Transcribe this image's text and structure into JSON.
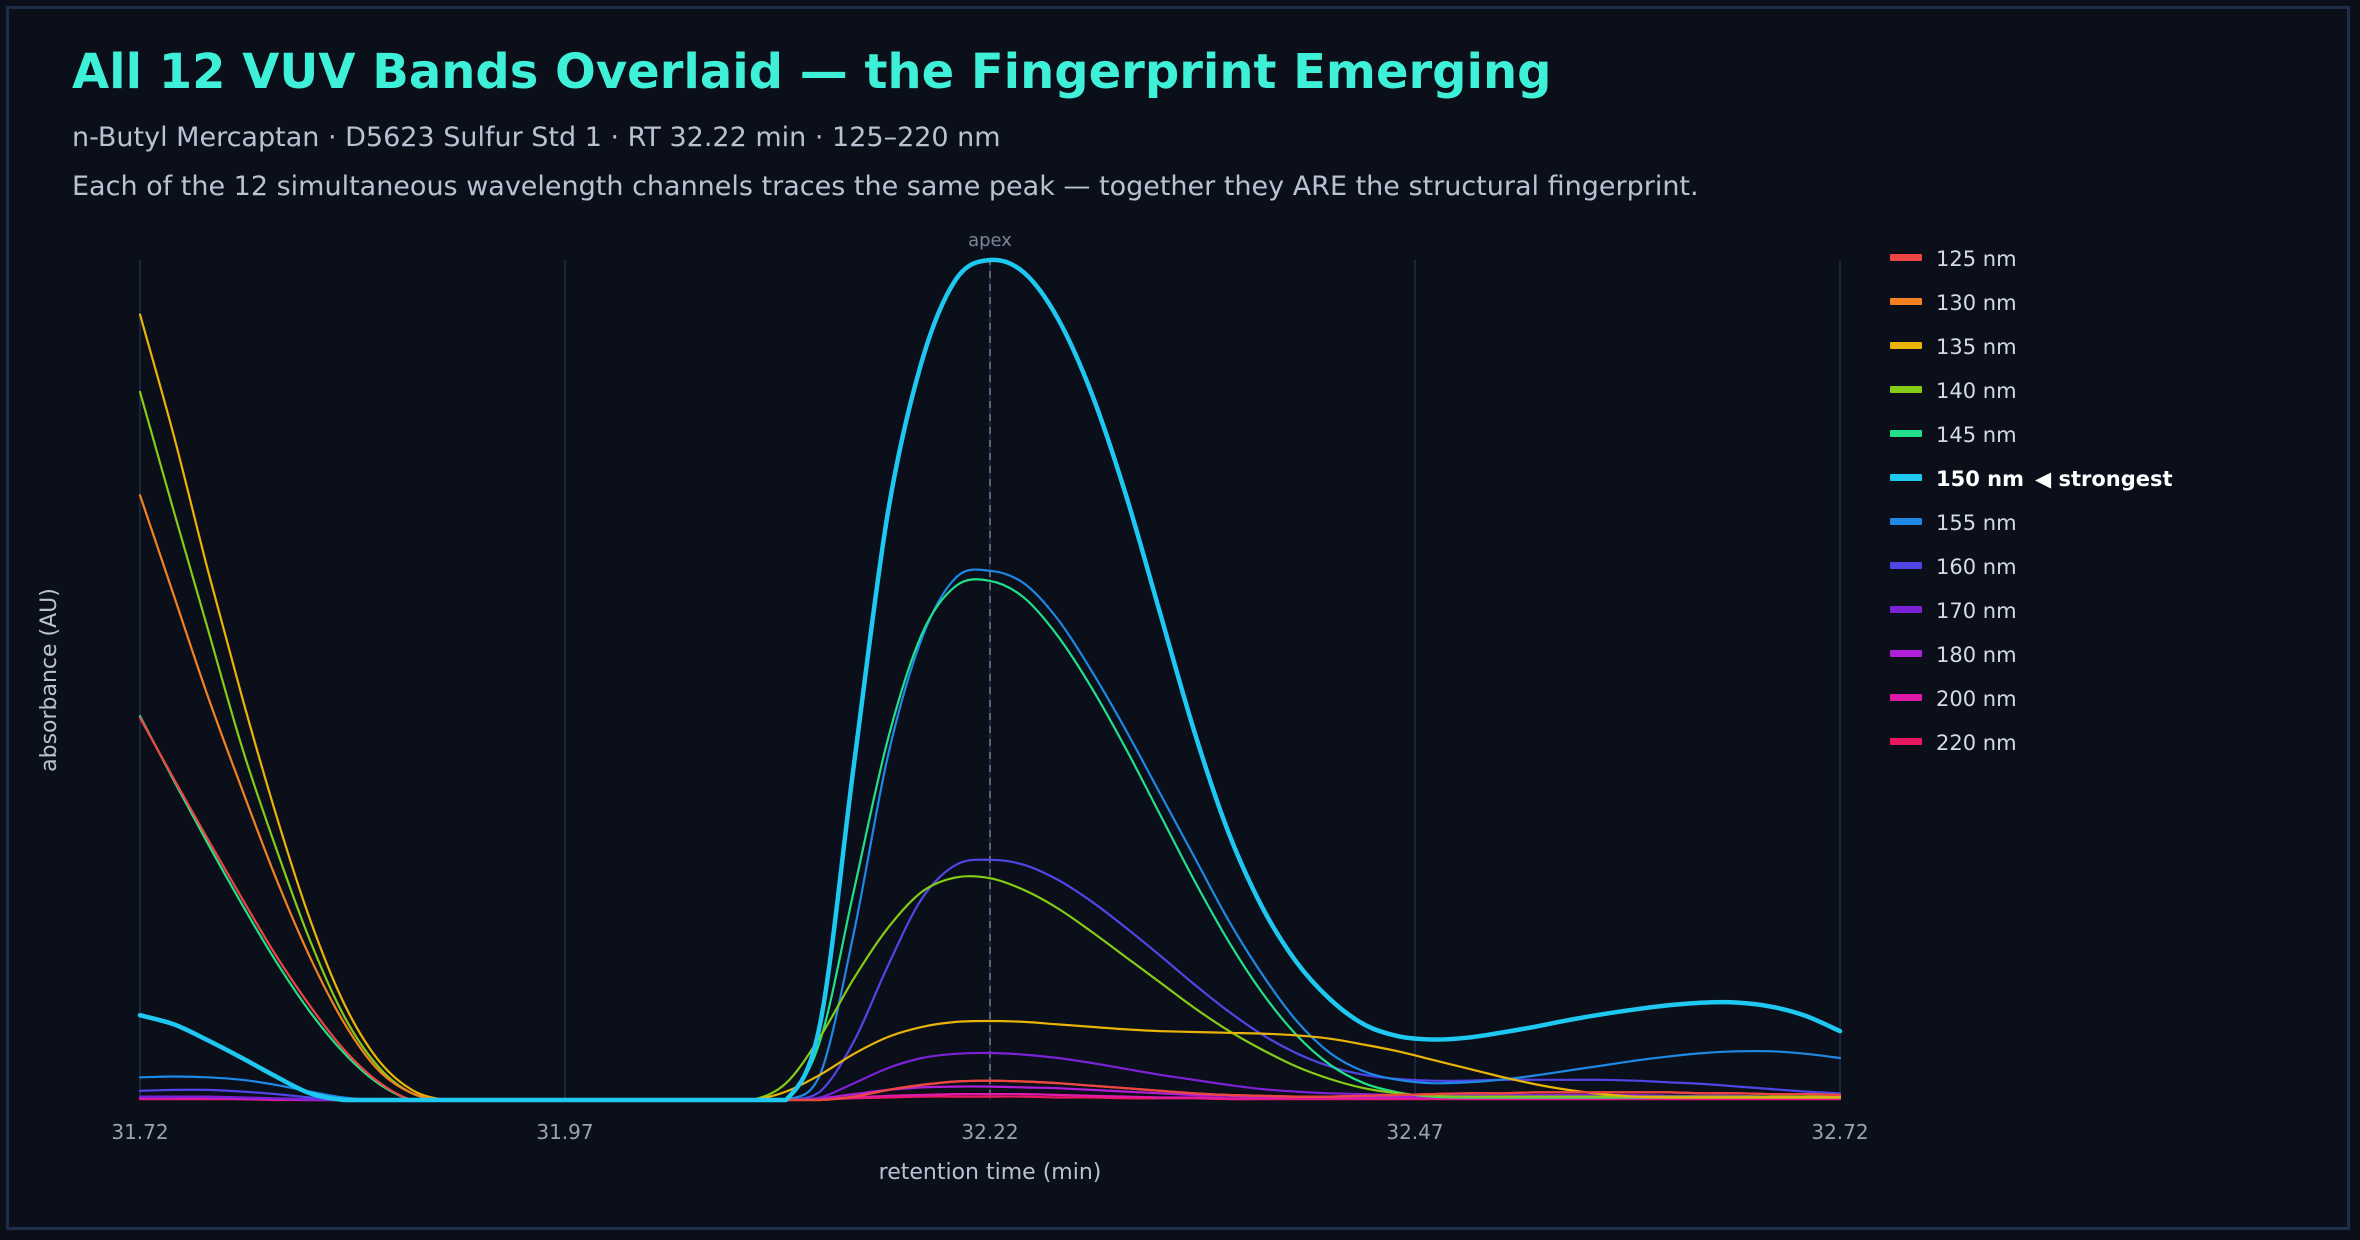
{
  "header": {
    "title": "All 12 VUV Bands Overlaid — the Fingerprint Emerging",
    "subtitle": "n-Butyl Mercaptan · D5623 Sulfur Std 1 · RT 32.22 min · 125–220 nm",
    "description": "Each of the 12 simultaneous wavelength channels traces the same peak — together they ARE the structural fingerprint."
  },
  "chart_data": {
    "type": "line",
    "xlabel": "retention time (min)",
    "ylabel": "absorbance (AU)",
    "xlim": [
      31.72,
      32.72
    ],
    "ylim": [
      0,
      1.0
    ],
    "x_ticks": [
      "31.72",
      "31.97",
      "32.22",
      "32.47",
      "32.72"
    ],
    "grid": "vertical",
    "legend_position": "right",
    "annotation": {
      "label": "apex",
      "x": 32.22
    },
    "highlight": {
      "series": "150 nm",
      "label": "◀ strongest"
    },
    "x": [
      31.72,
      31.74,
      31.76,
      31.78,
      31.8,
      31.82,
      31.84,
      31.86,
      31.88,
      31.9,
      31.92,
      31.94,
      31.96,
      31.98,
      32.0,
      32.02,
      32.04,
      32.06,
      32.08,
      32.1,
      32.12,
      32.14,
      32.16,
      32.18,
      32.2,
      32.22,
      32.24,
      32.26,
      32.28,
      32.3,
      32.32,
      32.34,
      32.36,
      32.38,
      32.4,
      32.42,
      32.44,
      32.46,
      32.48,
      32.5,
      32.52,
      32.54,
      32.56,
      32.58,
      32.6,
      32.62,
      32.64,
      32.66,
      32.68,
      32.7,
      32.72
    ],
    "series": [
      {
        "name": "125 nm",
        "color": "#ef4444",
        "values": [
          0.455,
          0.382,
          0.31,
          0.24,
          0.172,
          0.112,
          0.06,
          0.022,
          0.0,
          0.0,
          0.0,
          0.0,
          0.0,
          0.0,
          0.0,
          0.0,
          0.0,
          0.0,
          0.0,
          0.0,
          0.0,
          0.004,
          0.012,
          0.018,
          0.022,
          0.023,
          0.022,
          0.02,
          0.017,
          0.014,
          0.011,
          0.008,
          0.006,
          0.005,
          0.004,
          0.004,
          0.005,
          0.006,
          0.007,
          0.008,
          0.008,
          0.009,
          0.009,
          0.009,
          0.009,
          0.009,
          0.008,
          0.008,
          0.007,
          0.007,
          0.006
        ]
      },
      {
        "name": "130 nm",
        "color": "#f58220",
        "values": [
          0.72,
          0.6,
          0.48,
          0.37,
          0.264,
          0.17,
          0.092,
          0.036,
          0.008,
          0.0,
          0.0,
          0.0,
          0.0,
          0.0,
          0.0,
          0.0,
          0.0,
          0.0,
          0.0,
          0.0,
          0.0,
          0.004,
          0.012,
          0.018,
          0.022,
          0.023,
          0.022,
          0.02,
          0.017,
          0.014,
          0.011,
          0.008,
          0.006,
          0.005,
          0.004,
          0.004,
          0.005,
          0.006,
          0.007,
          0.008,
          0.008,
          0.009,
          0.009,
          0.009,
          0.009,
          0.009,
          0.008,
          0.008,
          0.007,
          0.007,
          0.006
        ]
      },
      {
        "name": "135 nm",
        "color": "#eab308",
        "values": [
          0.935,
          0.79,
          0.63,
          0.48,
          0.34,
          0.215,
          0.115,
          0.048,
          0.012,
          0.0,
          0.0,
          0.0,
          0.0,
          0.0,
          0.0,
          0.0,
          0.0,
          0.0,
          0.0,
          0.01,
          0.03,
          0.055,
          0.075,
          0.087,
          0.093,
          0.094,
          0.093,
          0.09,
          0.087,
          0.084,
          0.082,
          0.081,
          0.08,
          0.079,
          0.077,
          0.073,
          0.066,
          0.058,
          0.048,
          0.038,
          0.028,
          0.019,
          0.012,
          0.007,
          0.004,
          0.003,
          0.003,
          0.003,
          0.003,
          0.003,
          0.003
        ]
      },
      {
        "name": "140 nm",
        "color": "#84cc16",
        "values": [
          0.843,
          0.7,
          0.56,
          0.42,
          0.3,
          0.19,
          0.1,
          0.04,
          0.008,
          0.0,
          0.0,
          0.0,
          0.0,
          0.0,
          0.0,
          0.0,
          0.0,
          0.0,
          0.0,
          0.02,
          0.075,
          0.145,
          0.205,
          0.248,
          0.265,
          0.264,
          0.25,
          0.228,
          0.2,
          0.17,
          0.14,
          0.11,
          0.083,
          0.06,
          0.04,
          0.025,
          0.014,
          0.008,
          0.005,
          0.004,
          0.004,
          0.004,
          0.004,
          0.004,
          0.004,
          0.004,
          0.004,
          0.004,
          0.004,
          0.004,
          0.004
        ]
      },
      {
        "name": "145 nm",
        "color": "#22e08a",
        "values": [
          0.457,
          0.38,
          0.305,
          0.233,
          0.165,
          0.105,
          0.056,
          0.02,
          0.0,
          0.0,
          0.0,
          0.0,
          0.0,
          0.0,
          0.0,
          0.0,
          0.0,
          0.0,
          0.0,
          0.0,
          0.07,
          0.25,
          0.43,
          0.555,
          0.612,
          0.618,
          0.598,
          0.552,
          0.49,
          0.418,
          0.34,
          0.262,
          0.19,
          0.128,
          0.078,
          0.042,
          0.02,
          0.009,
          0.004,
          0.003,
          0.003,
          0.003,
          0.003,
          0.003,
          0.003,
          0.003,
          0.003,
          0.003,
          0.003,
          0.003,
          0.003
        ]
      },
      {
        "name": "150 nm",
        "color": "#1ec8f0",
        "emphasized": true,
        "values": [
          0.101,
          0.09,
          0.071,
          0.05,
          0.028,
          0.008,
          0.0,
          0.0,
          0.0,
          0.0,
          0.0,
          0.0,
          0.0,
          0.0,
          0.0,
          0.0,
          0.0,
          0.0,
          0.0,
          0.0,
          0.09,
          0.4,
          0.7,
          0.88,
          0.977,
          1.0,
          0.985,
          0.93,
          0.84,
          0.72,
          0.58,
          0.44,
          0.32,
          0.23,
          0.165,
          0.12,
          0.09,
          0.076,
          0.072,
          0.074,
          0.08,
          0.087,
          0.095,
          0.102,
          0.108,
          0.113,
          0.116,
          0.116,
          0.111,
          0.1,
          0.082
        ]
      },
      {
        "name": "155 nm",
        "color": "#1e88e5",
        "values": [
          0.027,
          0.028,
          0.027,
          0.024,
          0.018,
          0.01,
          0.003,
          0.0,
          0.0,
          0.0,
          0.0,
          0.0,
          0.0,
          0.0,
          0.0,
          0.0,
          0.0,
          0.0,
          0.0,
          0.0,
          0.03,
          0.2,
          0.41,
          0.55,
          0.622,
          0.63,
          0.615,
          0.572,
          0.51,
          0.44,
          0.365,
          0.29,
          0.215,
          0.15,
          0.095,
          0.056,
          0.034,
          0.024,
          0.02,
          0.021,
          0.024,
          0.029,
          0.035,
          0.041,
          0.047,
          0.052,
          0.056,
          0.058,
          0.058,
          0.055,
          0.05
        ]
      },
      {
        "name": "160 nm",
        "color": "#4f46e5",
        "values": [
          0.011,
          0.012,
          0.012,
          0.01,
          0.007,
          0.003,
          0.0,
          0.0,
          0.0,
          0.0,
          0.0,
          0.0,
          0.0,
          0.0,
          0.0,
          0.0,
          0.0,
          0.0,
          0.0,
          0.0,
          0.01,
          0.07,
          0.16,
          0.24,
          0.28,
          0.286,
          0.28,
          0.262,
          0.236,
          0.205,
          0.172,
          0.138,
          0.106,
          0.078,
          0.056,
          0.04,
          0.03,
          0.025,
          0.023,
          0.023,
          0.024,
          0.024,
          0.024,
          0.024,
          0.023,
          0.021,
          0.019,
          0.016,
          0.013,
          0.01,
          0.008
        ]
      },
      {
        "name": "170 nm",
        "color": "#7c22d6",
        "values": [
          0.004,
          0.004,
          0.004,
          0.003,
          0.002,
          0.001,
          0.0,
          0.0,
          0.0,
          0.0,
          0.0,
          0.0,
          0.0,
          0.0,
          0.0,
          0.0,
          0.0,
          0.0,
          0.0,
          0.0,
          0.003,
          0.02,
          0.038,
          0.05,
          0.055,
          0.056,
          0.054,
          0.05,
          0.044,
          0.037,
          0.03,
          0.024,
          0.018,
          0.013,
          0.01,
          0.008,
          0.007,
          0.006,
          0.006,
          0.006,
          0.006,
          0.006,
          0.006,
          0.006,
          0.006,
          0.005,
          0.005,
          0.005,
          0.004,
          0.004,
          0.004
        ]
      },
      {
        "name": "180 nm",
        "color": "#b020d8",
        "values": [
          0.003,
          0.003,
          0.003,
          0.002,
          0.001,
          0.0,
          0.0,
          0.0,
          0.0,
          0.0,
          0.0,
          0.0,
          0.0,
          0.0,
          0.0,
          0.0,
          0.0,
          0.0,
          0.0,
          0.0,
          0.002,
          0.007,
          0.012,
          0.015,
          0.016,
          0.016,
          0.015,
          0.014,
          0.012,
          0.01,
          0.008,
          0.006,
          0.005,
          0.004,
          0.004,
          0.004,
          0.004,
          0.004,
          0.004,
          0.004,
          0.004,
          0.004,
          0.004,
          0.004,
          0.004,
          0.004,
          0.004,
          0.004,
          0.004,
          0.004,
          0.004
        ]
      },
      {
        "name": "200 nm",
        "color": "#e01aa8",
        "values": [
          0.002,
          0.002,
          0.002,
          0.001,
          0.001,
          0.0,
          0.0,
          0.0,
          0.0,
          0.0,
          0.0,
          0.0,
          0.0,
          0.0,
          0.0,
          0.0,
          0.0,
          0.0,
          0.0,
          0.0,
          0.001,
          0.003,
          0.005,
          0.006,
          0.007,
          0.007,
          0.007,
          0.006,
          0.005,
          0.004,
          0.003,
          0.003,
          0.002,
          0.002,
          0.002,
          0.002,
          0.002,
          0.002,
          0.002,
          0.002,
          0.002,
          0.002,
          0.002,
          0.002,
          0.002,
          0.002,
          0.002,
          0.002,
          0.002,
          0.002,
          0.002
        ]
      },
      {
        "name": "220 nm",
        "color": "#e8185f",
        "values": [
          0.001,
          0.001,
          0.001,
          0.001,
          0.0,
          0.0,
          0.0,
          0.0,
          0.0,
          0.0,
          0.0,
          0.0,
          0.0,
          0.0,
          0.0,
          0.0,
          0.0,
          0.0,
          0.0,
          0.0,
          0.001,
          0.002,
          0.003,
          0.004,
          0.004,
          0.004,
          0.004,
          0.003,
          0.003,
          0.002,
          0.002,
          0.002,
          0.001,
          0.001,
          0.001,
          0.001,
          0.001,
          0.001,
          0.001,
          0.001,
          0.001,
          0.001,
          0.001,
          0.001,
          0.001,
          0.001,
          0.001,
          0.001,
          0.001,
          0.001,
          0.001
        ]
      }
    ]
  }
}
